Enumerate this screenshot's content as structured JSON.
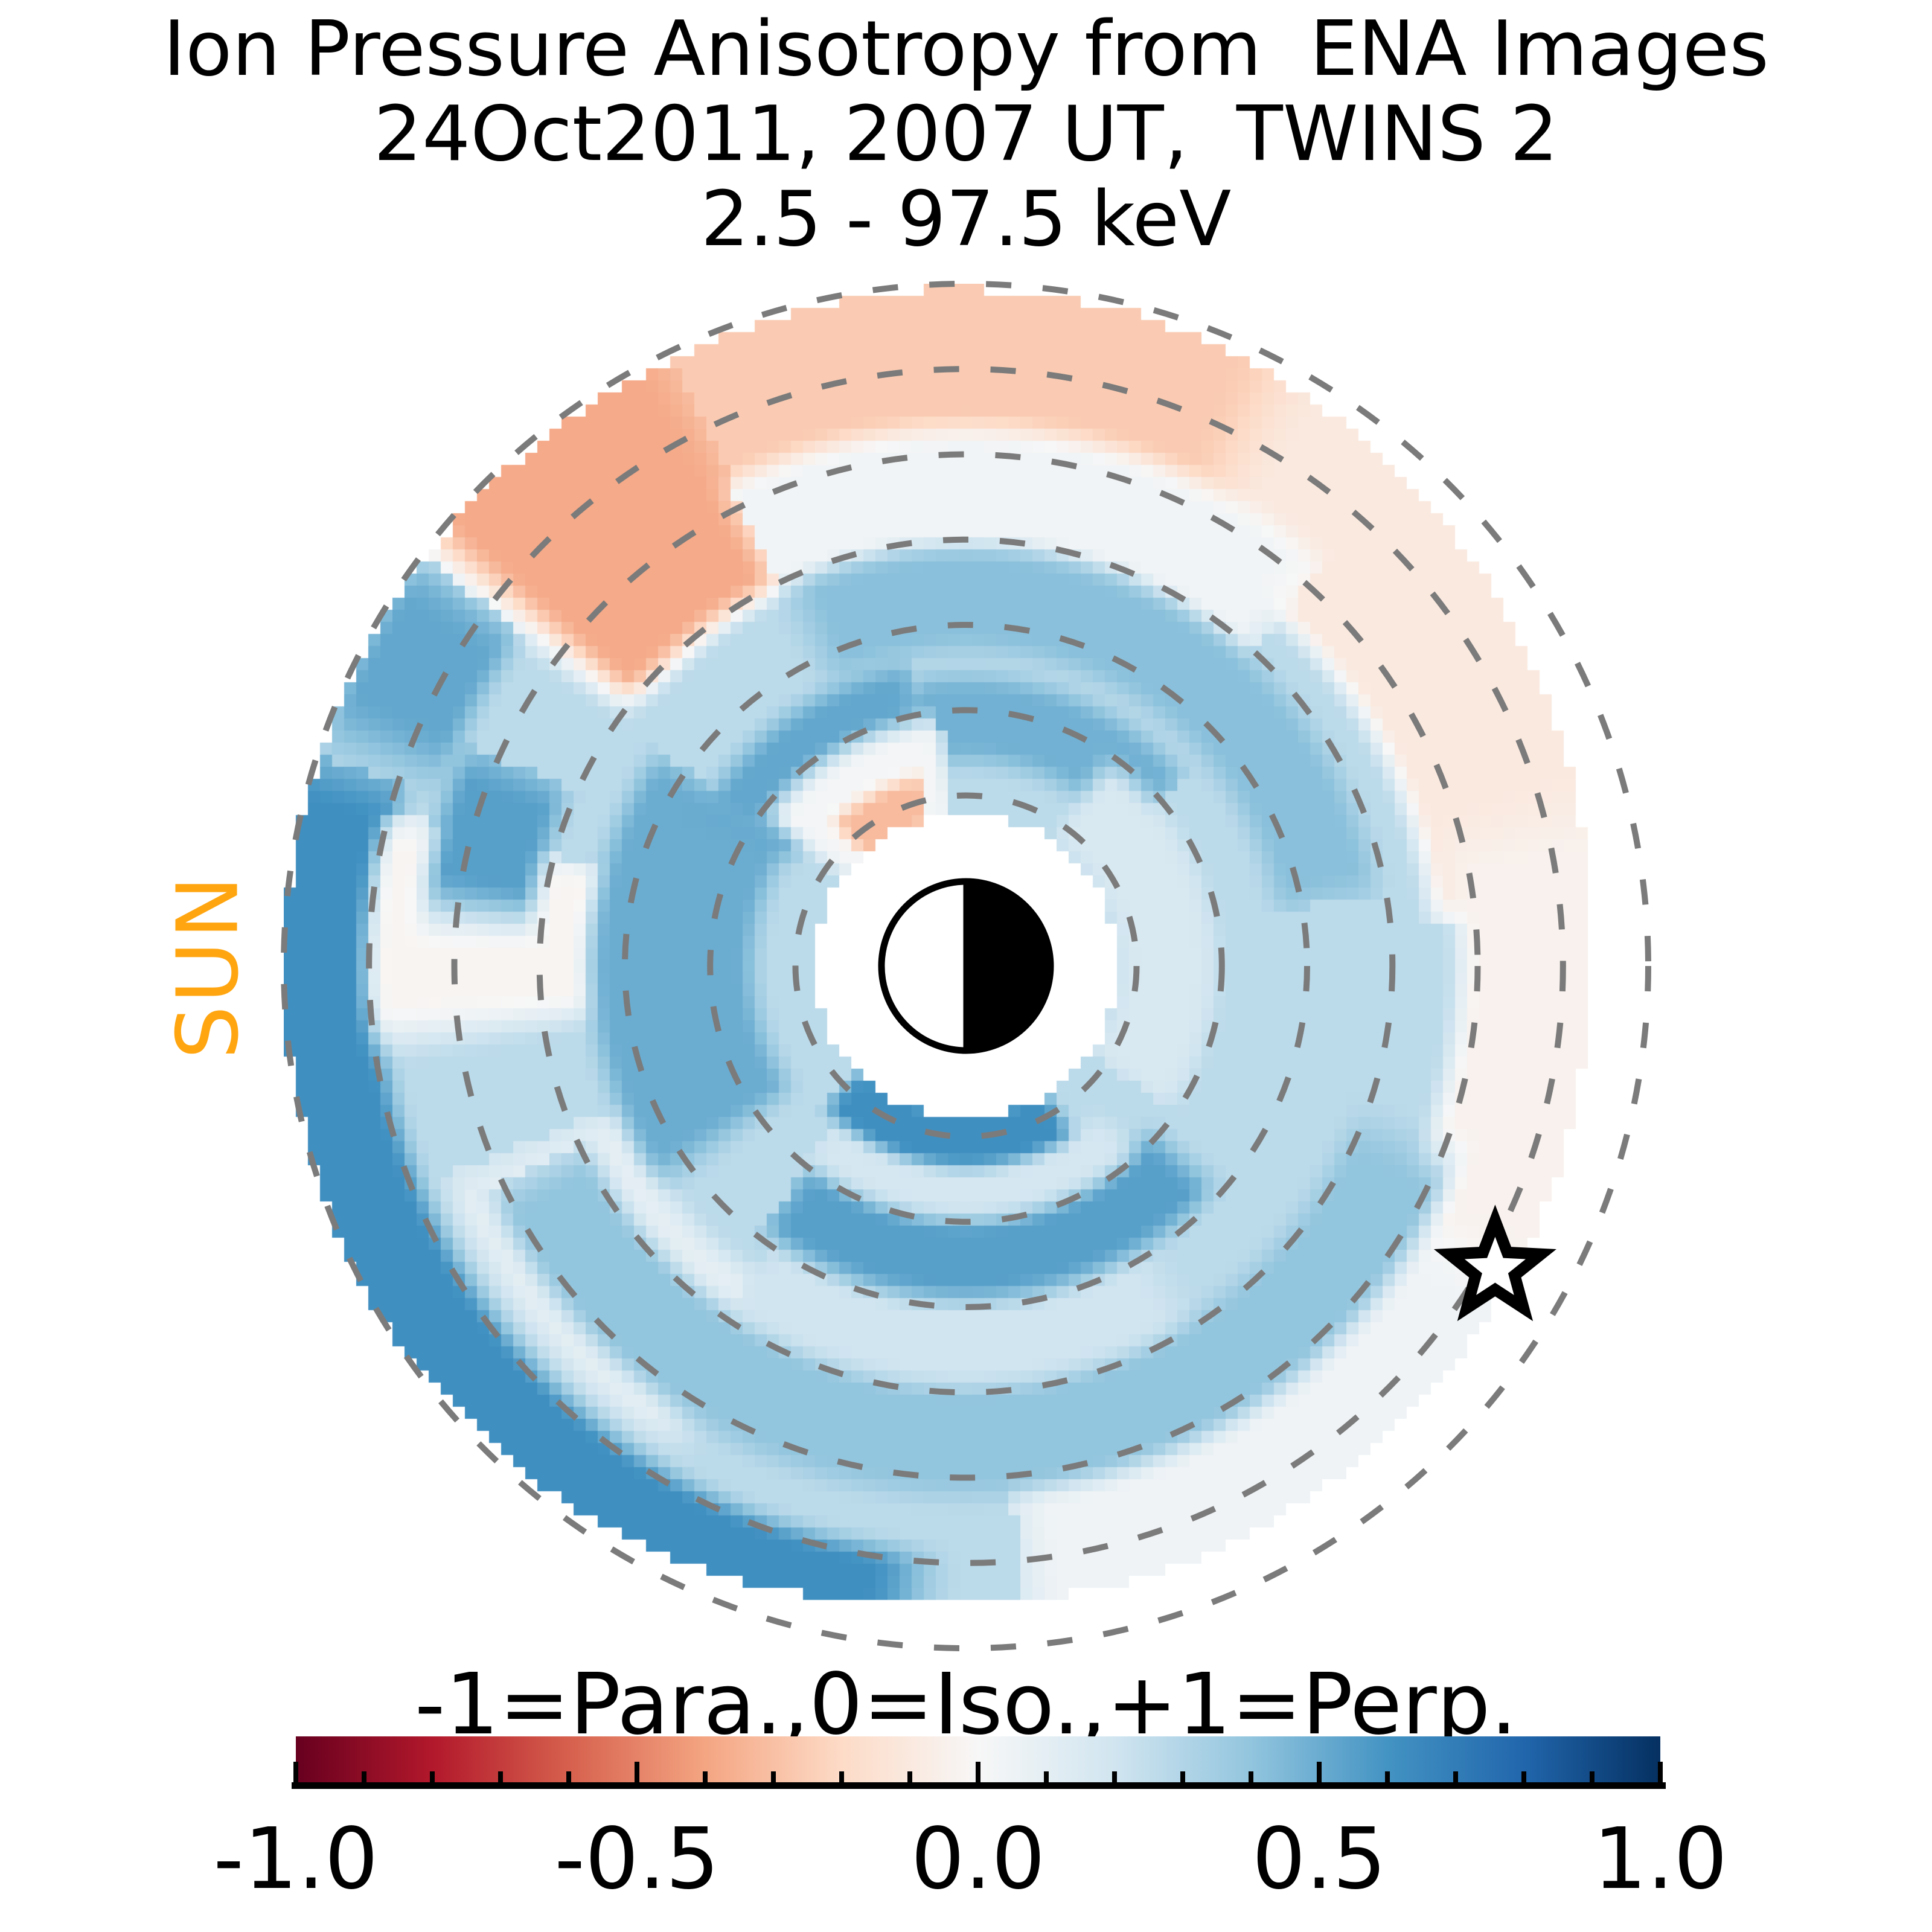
{
  "title": {
    "line1": "Ion Pressure Anisotropy from  ENA Images",
    "line2": "24Oct2011, 2007 UT,  TWINS 2",
    "line3": "2.5 - 97.5 keV"
  },
  "sun_label": "SUN",
  "colors": {
    "sun_label_orange": "#FFA510",
    "ring_gray": "#7B7B7B",
    "text_black": "#000000",
    "background_white": "#FFFFFF"
  },
  "colorbar": {
    "label": "-1=Para.,0=Iso.,+1=Perp.",
    "ticks": [
      "-1.0",
      "-0.5",
      "0.0",
      "0.5",
      "1.0"
    ],
    "tick_values": [
      -1.0,
      -0.5,
      0.0,
      0.5,
      1.0
    ],
    "min": -1.0,
    "max": 1.0,
    "minor_step": 0.1,
    "colormap": "RdBu"
  },
  "chart_data": {
    "type": "heatmap",
    "projection": "polar",
    "title": "Ion Pressure Anisotropy from ENA Images",
    "subtitle": "24Oct2011, 2007 UT, TWINS 2",
    "energy_range": "2.5 - 97.5 keV",
    "value_range": [
      -1,
      1
    ],
    "value_meaning": {
      "-1": "Parallel",
      "0": "Isotropic",
      "+1": "Perpendicular"
    },
    "legend_note": "-1=Para.,0=Iso.,+1=Perp.",
    "grid": "dashed concentric circles",
    "radial_rings_re": [
      2,
      3,
      4,
      5,
      6,
      7,
      8
    ],
    "inner_mask_re": 1.78,
    "earth_symbol": {
      "at_center": true,
      "radius_re": 1,
      "style": "left half white, right half black"
    },
    "sun_direction": "left",
    "star_marker": {
      "angle_deg": -29.8,
      "radius_re": 7.15
    },
    "colormap_stops": [
      {
        "t": 0.0,
        "color": "#67001F"
      },
      {
        "t": 0.1,
        "color": "#B2182B"
      },
      {
        "t": 0.2,
        "color": "#D6604D"
      },
      {
        "t": 0.3,
        "color": "#F4A582"
      },
      {
        "t": 0.4,
        "color": "#FDDBC7"
      },
      {
        "t": 0.5,
        "color": "#F7F7F7"
      },
      {
        "t": 0.6,
        "color": "#D1E5F0"
      },
      {
        "t": 0.7,
        "color": "#92C5DE"
      },
      {
        "t": 0.8,
        "color": "#4393C3"
      },
      {
        "t": 0.9,
        "color": "#2166AC"
      },
      {
        "t": 1.0,
        "color": "#053061"
      }
    ],
    "base_value": 0.27,
    "data_edge_by_angle": [
      [
        -180,
        8.0
      ],
      [
        -150,
        8.0
      ],
      [
        -120,
        7.8
      ],
      [
        -95,
        7.5
      ],
      [
        -70,
        7.45
      ],
      [
        -45,
        7.4
      ],
      [
        -20,
        7.35
      ],
      [
        0,
        7.3
      ],
      [
        25,
        7.5
      ],
      [
        50,
        7.7
      ],
      [
        75,
        7.9
      ],
      [
        95,
        7.95
      ],
      [
        120,
        7.9
      ],
      [
        150,
        7.95
      ],
      [
        180,
        8.0
      ]
    ],
    "regions": [
      {
        "name": "top_outer_salmon_band",
        "angle_deg": [
          52,
          127
        ],
        "radius_re": [
          6.0,
          8.25
        ],
        "value": -0.26
      },
      {
        "name": "topright_outer_peach",
        "angle_deg": [
          5,
          62
        ],
        "radius_re": [
          5.5,
          8.25
        ],
        "value": -0.1
      },
      {
        "name": "right_outer_pale",
        "angle_deg": [
          -52,
          14
        ],
        "radius_re": [
          5.8,
          8.25
        ],
        "value": -0.04
      },
      {
        "name": "bottomright_outer_pale",
        "angle_deg": [
          -85,
          -30
        ],
        "radius_re": [
          5.4,
          7.8
        ],
        "value": 0.04
      },
      {
        "name": "top_white_gap_band",
        "angle_deg": [
          48,
          138
        ],
        "radius_re": [
          4.9,
          6.3
        ],
        "value": 0.03
      },
      {
        "name": "topleft_salmon_streak",
        "angle_deg": [
          116,
          142
        ],
        "radius_re": [
          5.0,
          8.15
        ],
        "value": -0.38,
        "am": 7,
        "rm": 0.5
      },
      {
        "name": "topleft_outer_blue_knot",
        "angle_deg": [
          143,
          160
        ],
        "radius_re": [
          6.5,
          8.0
        ],
        "value": 0.52
      },
      {
        "name": "left_outer_dark_crescent",
        "angle_deg": [
          162,
          265
        ],
        "radius_re": [
          6.9,
          8.2
        ],
        "value": 0.62
      },
      {
        "name": "left_white_wedge",
        "angle_deg": [
          165,
          187
        ],
        "radius_re": [
          4.4,
          7.0
        ],
        "value": -0.02,
        "am": 7
      },
      {
        "name": "bottomleft_pale_wedge",
        "angle_deg": [
          202,
          238
        ],
        "radius_re": [
          4.4,
          6.6
        ],
        "value": 0.1
      },
      {
        "name": "upper_blue_ring_arc",
        "angle_deg": [
          10,
          115
        ],
        "radius_re": [
          3.7,
          4.9
        ],
        "value": 0.42
      },
      {
        "name": "topleft_mid_dark_knot",
        "angle_deg": [
          156,
          174
        ],
        "radius_re": [
          5.1,
          6.4
        ],
        "value": 0.55
      },
      {
        "name": "left_mid_dark_band",
        "angle_deg": [
          145,
          215
        ],
        "radius_re": [
          2.5,
          4.4
        ],
        "value": 0.5
      },
      {
        "name": "nw_inner_dark",
        "angle_deg": [
          100,
          148
        ],
        "radius_re": [
          2.4,
          3.6
        ],
        "value": 0.52
      },
      {
        "name": "north_mask_dark_hook",
        "angle_deg": [
          40,
          102
        ],
        "radius_re": [
          2.4,
          3.4
        ],
        "value": 0.48
      },
      {
        "name": "inner_mask_halo_light",
        "angle_deg": [
          -35,
          55
        ],
        "radius_re": [
          1.8,
          2.9
        ],
        "value": 0.16
      },
      {
        "name": "bottom_mid_blue_band",
        "angle_deg": [
          205,
          338
        ],
        "radius_re": [
          4.9,
          6.2
        ],
        "value": 0.4
      },
      {
        "name": "bottom_light_gap",
        "angle_deg": [
          235,
          302
        ],
        "radius_re": [
          3.9,
          4.9
        ],
        "value": 0.2
      },
      {
        "name": "bottom_dark_arc",
        "angle_deg": [
          232,
          318
        ],
        "radius_re": [
          2.9,
          3.9
        ],
        "value": 0.55
      },
      {
        "name": "below_mask_light_band",
        "angle_deg": [
          230,
          312
        ],
        "radius_re": [
          2.35,
          2.95
        ],
        "value": 0.18
      },
      {
        "name": "mask_bottom_dark_arc",
        "angle_deg": [
          225,
          302
        ],
        "radius_re": [
          1.7,
          2.35
        ],
        "value": 0.62,
        "rm": 0.3
      },
      {
        "name": "wisp_white_halo",
        "angle_deg": [
          96,
          143
        ],
        "radius_re": [
          1.7,
          2.9
        ],
        "value": 0.02,
        "am": 8
      },
      {
        "name": "salmon_wisp_above_mask",
        "angle_deg": [
          103,
          133
        ],
        "radius_re": [
          1.7,
          2.3
        ],
        "value": -0.32,
        "am": 7,
        "rm": 0.3
      }
    ]
  }
}
